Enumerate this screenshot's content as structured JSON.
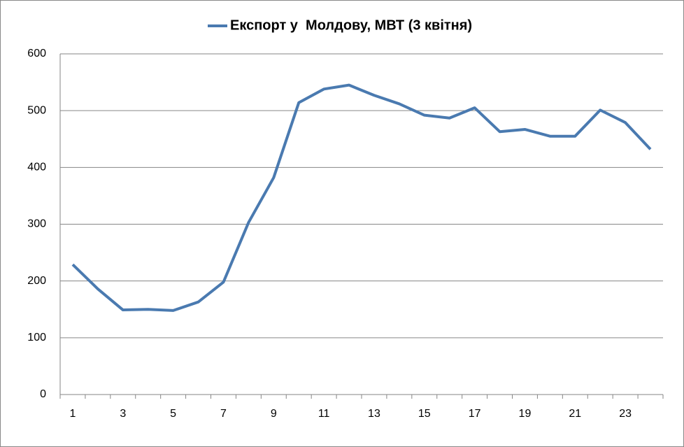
{
  "chart_data": {
    "type": "line",
    "categories": [
      "1",
      null,
      "3",
      null,
      "5",
      null,
      "7",
      null,
      "9",
      null,
      "11",
      null,
      "13",
      null,
      "15",
      null,
      "17",
      null,
      "19",
      null,
      "21",
      null,
      "23",
      null
    ],
    "series": [
      {
        "name": "Експорт у  Молдову, МВТ (3 квітня)",
        "color": "#4a7ab0",
        "values": [
          229,
          186,
          149,
          150,
          148,
          163,
          198,
          303,
          382,
          514,
          538,
          545,
          527,
          512,
          492,
          487,
          505,
          463,
          467,
          455,
          455,
          501,
          479,
          432
        ]
      }
    ],
    "ylim": [
      0,
      600
    ],
    "yticks": [
      0,
      100,
      200,
      300,
      400,
      500,
      600
    ],
    "grid": true,
    "legend": "top"
  }
}
